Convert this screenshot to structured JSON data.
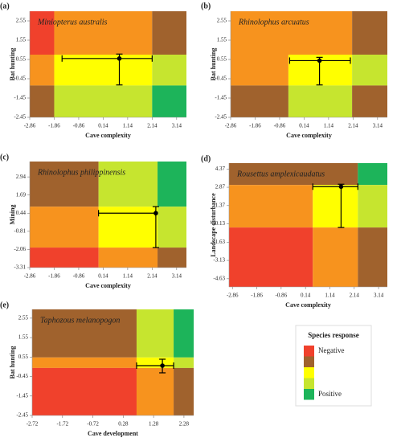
{
  "chart_data": [
    {
      "type": "heatmap",
      "label": "(a)",
      "title": "Miniopterus australis",
      "xlabel": "Cave complexity",
      "ylabel": "Bat hunting",
      "xlim": [
        -2.86,
        3.54
      ],
      "ylim": [
        -2.45,
        3.05
      ],
      "xticks": [
        -2.86,
        -1.86,
        -0.86,
        0.14,
        1.14,
        2.14,
        3.14
      ],
      "yticks": [
        -2.45,
        -1.45,
        -0.45,
        0.55,
        1.55,
        2.55
      ],
      "cells": [
        {
          "x": [
            -2.86,
            -1.86
          ],
          "y": [
            0.8,
            3.05
          ],
          "color": "#f0412c"
        },
        {
          "x": [
            -1.86,
            2.14
          ],
          "y": [
            0.8,
            3.05
          ],
          "color": "#f7931e"
        },
        {
          "x": [
            2.14,
            3.54
          ],
          "y": [
            0.8,
            3.05
          ],
          "color": "#a0622d"
        },
        {
          "x": [
            -2.86,
            -1.86
          ],
          "y": [
            -0.8,
            0.8
          ],
          "color": "#f7931e"
        },
        {
          "x": [
            -1.86,
            2.14
          ],
          "y": [
            -0.8,
            0.8
          ],
          "color": "#ffff00"
        },
        {
          "x": [
            2.14,
            3.54
          ],
          "y": [
            -0.8,
            0.8
          ],
          "color": "#c6e52f"
        },
        {
          "x": [
            -2.86,
            -1.86
          ],
          "y": [
            -2.45,
            -0.8
          ],
          "color": "#a0622d"
        },
        {
          "x": [
            -1.86,
            2.14
          ],
          "y": [
            -2.45,
            -0.8
          ],
          "color": "#c6e52f"
        },
        {
          "x": [
            2.14,
            3.54
          ],
          "y": [
            -2.45,
            -0.8
          ],
          "color": "#1db45a"
        }
      ],
      "point": {
        "x": 0.8,
        "y": 0.6,
        "x_low": -1.54,
        "x_high": 2.14,
        "y_low": -0.77,
        "y_high": 0.83
      }
    },
    {
      "type": "heatmap",
      "label": "(b)",
      "title": "Rhinolophus arcuatus",
      "xlabel": "Cave complexity",
      "ylabel": "Bat hunting",
      "xlim": [
        -2.86,
        3.54
      ],
      "ylim": [
        -2.45,
        3.05
      ],
      "xticks": [
        -2.86,
        -1.86,
        -0.86,
        0.14,
        1.14,
        2.14,
        3.14
      ],
      "yticks": [
        -2.45,
        -1.45,
        -0.45,
        0.55,
        1.55,
        2.55
      ],
      "cells": [
        {
          "x": [
            -2.86,
            2.1
          ],
          "y": [
            0.8,
            3.05
          ],
          "color": "#f7931e"
        },
        {
          "x": [
            2.1,
            3.54
          ],
          "y": [
            0.8,
            3.05
          ],
          "color": "#a0622d"
        },
        {
          "x": [
            -2.86,
            -0.5
          ],
          "y": [
            -0.8,
            0.8
          ],
          "color": "#f7931e"
        },
        {
          "x": [
            -0.5,
            2.1
          ],
          "y": [
            -0.8,
            0.8
          ],
          "color": "#ffff00"
        },
        {
          "x": [
            2.1,
            3.54
          ],
          "y": [
            -0.8,
            0.8
          ],
          "color": "#c6e52f"
        },
        {
          "x": [
            -2.86,
            -0.5
          ],
          "y": [
            -2.45,
            -0.8
          ],
          "color": "#a0622d"
        },
        {
          "x": [
            -0.5,
            2.1
          ],
          "y": [
            -2.45,
            -0.8
          ],
          "color": "#c6e52f"
        },
        {
          "x": [
            2.1,
            3.54
          ],
          "y": [
            -2.45,
            -0.8
          ],
          "color": "#a0622d"
        }
      ],
      "point": {
        "x": 0.77,
        "y": 0.49,
        "x_low": -0.45,
        "x_high": 2.03,
        "y_low": -0.77,
        "y_high": 0.66
      }
    },
    {
      "type": "heatmap",
      "label": "(c)",
      "title": "Rhinolophus philippinensis",
      "xlabel": "Cave complexity",
      "ylabel": "Mining",
      "xlim": [
        -2.86,
        3.54
      ],
      "ylim": [
        -3.31,
        4.0
      ],
      "xticks": [
        -2.86,
        -1.86,
        -0.86,
        0.14,
        1.14,
        2.14,
        3.14
      ],
      "yticks": [
        -3.31,
        -2.06,
        -0.81,
        0.44,
        1.69,
        2.94
      ],
      "cells": [
        {
          "x": [
            -2.86,
            -0.05
          ],
          "y": [
            0.89,
            4.0
          ],
          "color": "#a0622d"
        },
        {
          "x": [
            -0.05,
            2.36
          ],
          "y": [
            0.89,
            4.0
          ],
          "color": "#c6e52f"
        },
        {
          "x": [
            2.36,
            3.54
          ],
          "y": [
            0.89,
            4.0
          ],
          "color": "#1db45a"
        },
        {
          "x": [
            -2.86,
            -0.05
          ],
          "y": [
            -1.93,
            0.89
          ],
          "color": "#f7931e"
        },
        {
          "x": [
            -0.05,
            2.36
          ],
          "y": [
            -1.93,
            0.89
          ],
          "color": "#ffff00"
        },
        {
          "x": [
            2.36,
            3.54
          ],
          "y": [
            -1.93,
            0.89
          ],
          "color": "#c6e52f"
        },
        {
          "x": [
            -2.86,
            -0.05
          ],
          "y": [
            -3.31,
            -1.93
          ],
          "color": "#f0412c"
        },
        {
          "x": [
            -0.05,
            2.36
          ],
          "y": [
            -3.31,
            -1.93
          ],
          "color": "#f7931e"
        },
        {
          "x": [
            2.36,
            3.54
          ],
          "y": [
            -3.31,
            -1.93
          ],
          "color": "#a0622d"
        }
      ],
      "point": {
        "x": 2.29,
        "y": 0.44,
        "x_low": -0.05,
        "x_high": 2.29,
        "y_low": -1.93,
        "y_high": 0.89
      }
    },
    {
      "type": "heatmap",
      "label": "(d)",
      "title": "Rousettus amplexicaudatus",
      "xlabel": "Cave complexity",
      "ylabel": "Landscape disturbance",
      "xlim": [
        -3.0,
        3.5
      ],
      "ylim": [
        -5.3,
        4.85
      ],
      "xticks": [
        -2.86,
        -1.86,
        -0.86,
        0.14,
        1.14,
        2.14,
        3.14
      ],
      "yticks": [
        -4.63,
        -3.13,
        -1.63,
        -0.13,
        1.37,
        2.87,
        4.37
      ],
      "cells": [
        {
          "x": [
            -3.0,
            2.29
          ],
          "y": [
            3.06,
            4.85
          ],
          "color": "#a0622d"
        },
        {
          "x": [
            2.29,
            3.5
          ],
          "y": [
            3.06,
            4.85
          ],
          "color": "#1db45a"
        },
        {
          "x": [
            -3.0,
            0.44
          ],
          "y": [
            -0.43,
            3.06
          ],
          "color": "#f7931e"
        },
        {
          "x": [
            0.44,
            2.29
          ],
          "y": [
            -0.43,
            3.06
          ],
          "color": "#ffff00"
        },
        {
          "x": [
            2.29,
            3.5
          ],
          "y": [
            -0.43,
            3.06
          ],
          "color": "#c6e52f"
        },
        {
          "x": [
            -3.0,
            0.44
          ],
          "y": [
            -5.3,
            -0.43
          ],
          "color": "#f0412c"
        },
        {
          "x": [
            0.44,
            2.29
          ],
          "y": [
            -5.3,
            -0.43
          ],
          "color": "#f7931e"
        },
        {
          "x": [
            2.29,
            3.5
          ],
          "y": [
            -5.3,
            -0.43
          ],
          "color": "#a0622d"
        }
      ],
      "point": {
        "x": 1.6,
        "y": 2.92,
        "x_low": 0.44,
        "x_high": 2.29,
        "y_low": -0.43,
        "y_high": 3.12
      }
    },
    {
      "type": "heatmap",
      "label": "(e)",
      "title": "Taphozous melanopogon",
      "xlabel": "Cave development",
      "ylabel": "Bat hunting",
      "xlim": [
        -2.72,
        2.6
      ],
      "ylim": [
        -2.45,
        3.0
      ],
      "xticks": [
        -2.72,
        -1.72,
        -0.72,
        0.28,
        1.28,
        2.28
      ],
      "yticks": [
        -2.45,
        -1.45,
        -0.45,
        0.55,
        1.55,
        2.55
      ],
      "cells": [
        {
          "x": [
            -2.72,
            0.72
          ],
          "y": [
            0.53,
            3.0
          ],
          "color": "#a0622d"
        },
        {
          "x": [
            0.72,
            1.94
          ],
          "y": [
            0.53,
            3.0
          ],
          "color": "#c6e52f"
        },
        {
          "x": [
            1.94,
            2.6
          ],
          "y": [
            0.53,
            3.0
          ],
          "color": "#1db45a"
        },
        {
          "x": [
            -2.72,
            0.72
          ],
          "y": [
            -0.01,
            0.53
          ],
          "color": "#f7931e"
        },
        {
          "x": [
            0.72,
            1.94
          ],
          "y": [
            -0.01,
            0.53
          ],
          "color": "#ffff00"
        },
        {
          "x": [
            1.94,
            2.6
          ],
          "y": [
            -0.01,
            0.53
          ],
          "color": "#c6e52f"
        },
        {
          "x": [
            -2.72,
            0.72
          ],
          "y": [
            -2.45,
            -0.01
          ],
          "color": "#f0412c"
        },
        {
          "x": [
            0.72,
            1.94
          ],
          "y": [
            -2.45,
            -0.01
          ],
          "color": "#f7931e"
        },
        {
          "x": [
            1.94,
            2.6
          ],
          "y": [
            -2.45,
            -0.01
          ],
          "color": "#a0622d"
        }
      ],
      "point": {
        "x": 1.57,
        "y": 0.11,
        "x_low": 0.72,
        "x_high": 1.94,
        "y_low": -0.26,
        "y_high": 0.44
      }
    }
  ],
  "legend": {
    "title": "Species response",
    "labels": [
      "Negative",
      "Positive"
    ],
    "colors": [
      "#f0412c",
      "#a0622d",
      "#ffff00",
      "#c6e52f",
      "#1db45a"
    ]
  }
}
